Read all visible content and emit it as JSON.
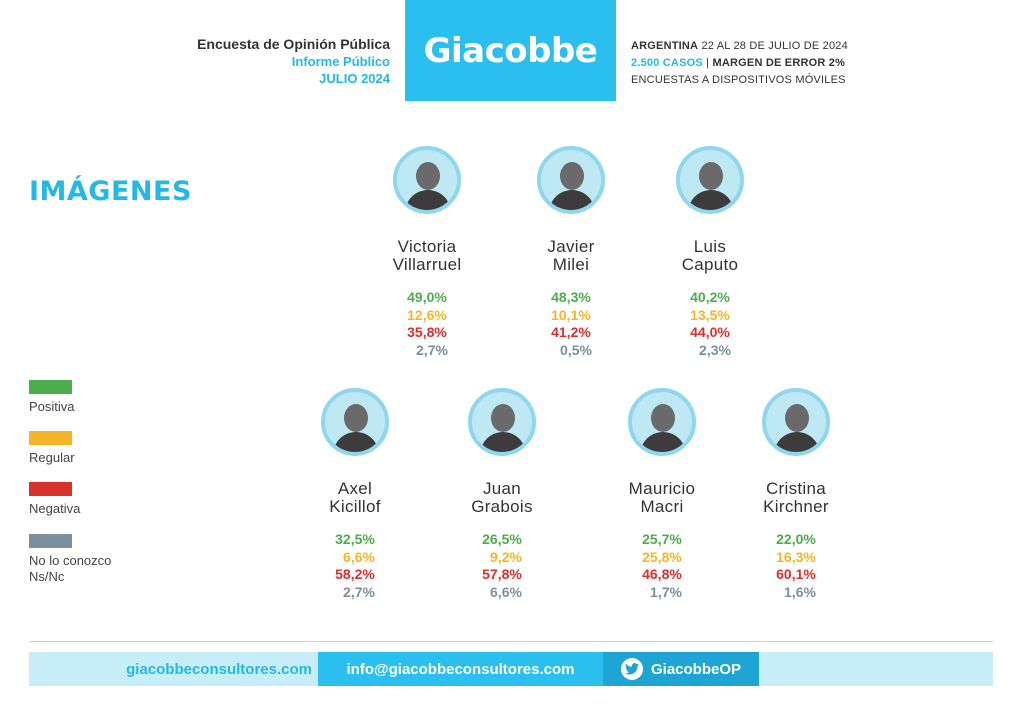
{
  "header": {
    "survey_title": "Encuesta de Opinión Pública",
    "report_type": "Informe Público",
    "period": "JULIO 2024",
    "brand": "Giacobbe",
    "location": "ARGENTINA",
    "dates": "22 AL 28 DE JULIO DE 2024",
    "cases": "2.500 CASOS",
    "separator": "|",
    "margin": "MARGEN DE ERROR 2%",
    "method": "ENCUESTAS A DISPOSITIVOS MÓVILES"
  },
  "section_title": "IMÁGENES",
  "legend": [
    {
      "label": "Positiva",
      "color": "#4cad4c"
    },
    {
      "label": "Regular",
      "color": "#f4b528"
    },
    {
      "label": "Negativa",
      "color": "#d8312c"
    },
    {
      "label": "No lo conozco\nNs/Nc",
      "color": "#7b909c"
    }
  ],
  "people": [
    {
      "first": "Victoria",
      "last": "Villarruel",
      "positiva": "49,0%",
      "regular": "12,6%",
      "negativa": "35,8%",
      "nsnc": "2,7%"
    },
    {
      "first": "Javier",
      "last": "Milei",
      "positiva": "48,3%",
      "regular": "10,1%",
      "negativa": "41,2%",
      "nsnc": "0,5%"
    },
    {
      "first": "Luis",
      "last": "Caputo",
      "positiva": "40,2%",
      "regular": "13,5%",
      "negativa": "44,0%",
      "nsnc": "2,3%"
    },
    {
      "first": "Axel",
      "last": "Kicillof",
      "positiva": "32,5%",
      "regular": "6,6%",
      "negativa": "58,2%",
      "nsnc": "2,7%"
    },
    {
      "first": "Juan",
      "last": "Grabois",
      "positiva": "26,5%",
      "regular": "9,2%",
      "negativa": "57,8%",
      "nsnc": "6,6%"
    },
    {
      "first": "Mauricio",
      "last": "Macri",
      "positiva": "25,7%",
      "regular": "25,8%",
      "negativa": "46,8%",
      "nsnc": "1,7%"
    },
    {
      "first": "Cristina",
      "last": "Kirchner",
      "positiva": "22,0%",
      "regular": "16,3%",
      "negativa": "60,1%",
      "nsnc": "1,6%"
    }
  ],
  "footer": {
    "website": "giacobbeconsultores.com",
    "email": "info@giacobbeconsultores.com",
    "twitter_icon": "twitter-bird-icon",
    "twitter": "GiacobbeOP"
  }
}
